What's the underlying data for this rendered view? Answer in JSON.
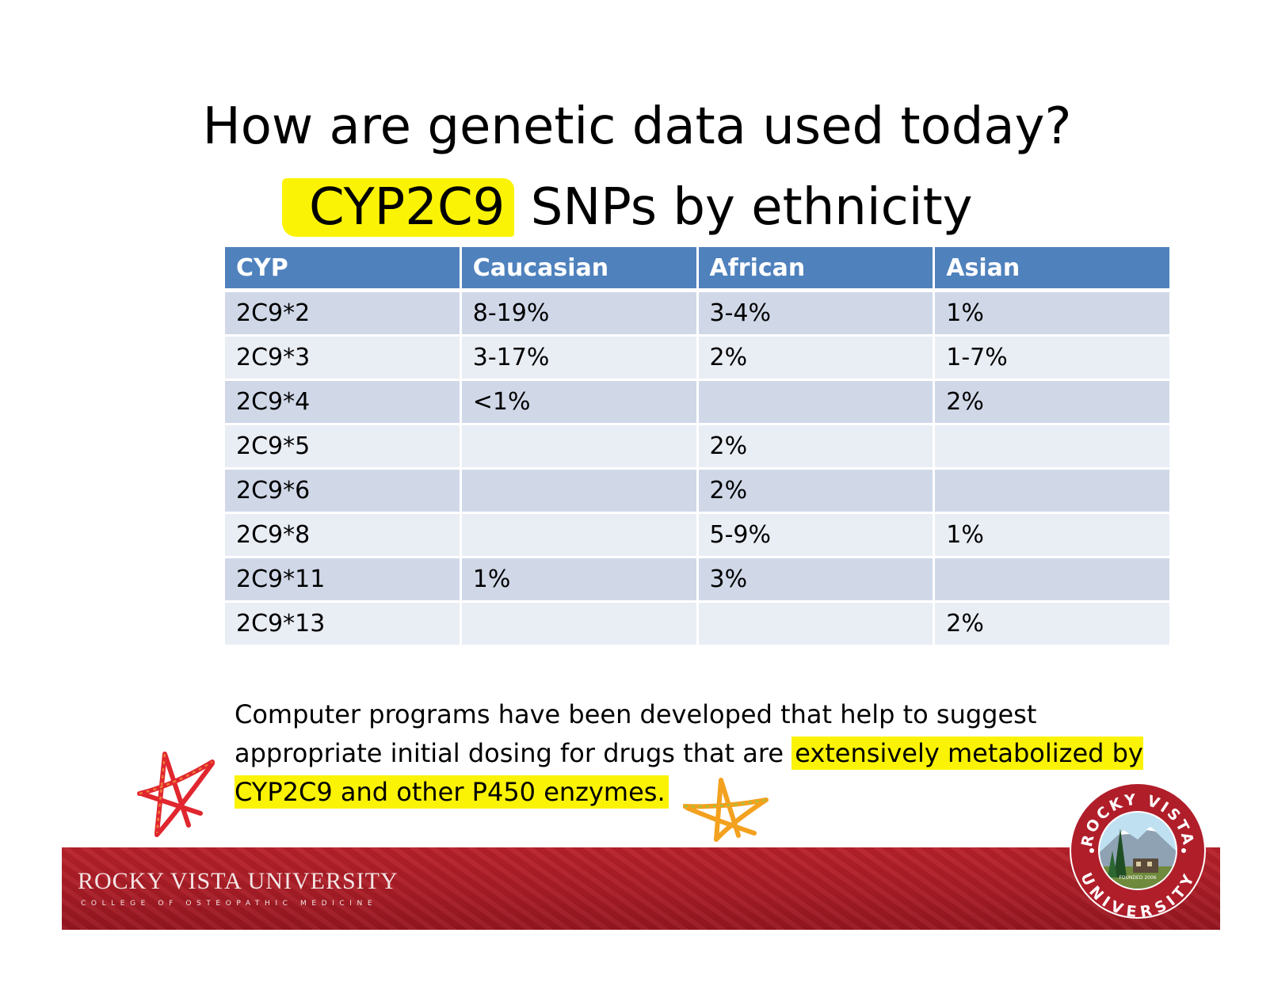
{
  "slide": {
    "title_line1": "How are genetic data used today?",
    "title_line2_highlight": "CYP2C9",
    "title_line2_rest": " SNPs by ethnicity"
  },
  "table": {
    "headers": [
      "CYP",
      "Caucasian",
      "African",
      "Asian"
    ],
    "rows": [
      [
        "2C9*2",
        "8-19%",
        "3-4%",
        "1%"
      ],
      [
        "2C9*3",
        "3-17%",
        "2%",
        "1-7%"
      ],
      [
        "2C9*4",
        "<1%",
        "",
        "2%"
      ],
      [
        "2C9*5",
        "",
        "2%",
        ""
      ],
      [
        "2C9*6",
        "",
        "2%",
        ""
      ],
      [
        "2C9*8",
        "",
        "5-9%",
        "1%"
      ],
      [
        "2C9*11",
        "1%",
        "3%",
        ""
      ],
      [
        "2C9*13",
        "",
        "",
        "2%"
      ]
    ]
  },
  "note": {
    "text_part1": "Computer programs have been developed that help to suggest appropriate initial dosing for drugs that are ",
    "text_highlight": "extensively metabolized by CYP2C9 and other P450 enzymes."
  },
  "footer": {
    "university_name": "ROCKY VISTA UNIVERSITY",
    "college": "COLLEGE OF OSTEOPATHIC MEDICINE",
    "seal_top": "ROCKY VISTA",
    "seal_bottom": "UNIVERSITY",
    "seal_founded": "FOUNDED 2006"
  },
  "colors": {
    "header_blue": "#4f81bd",
    "row_dark": "#d0d8e8",
    "row_light": "#e9edf4",
    "highlight_yellow": "#fbf305",
    "banner_red": "#a81c26"
  }
}
